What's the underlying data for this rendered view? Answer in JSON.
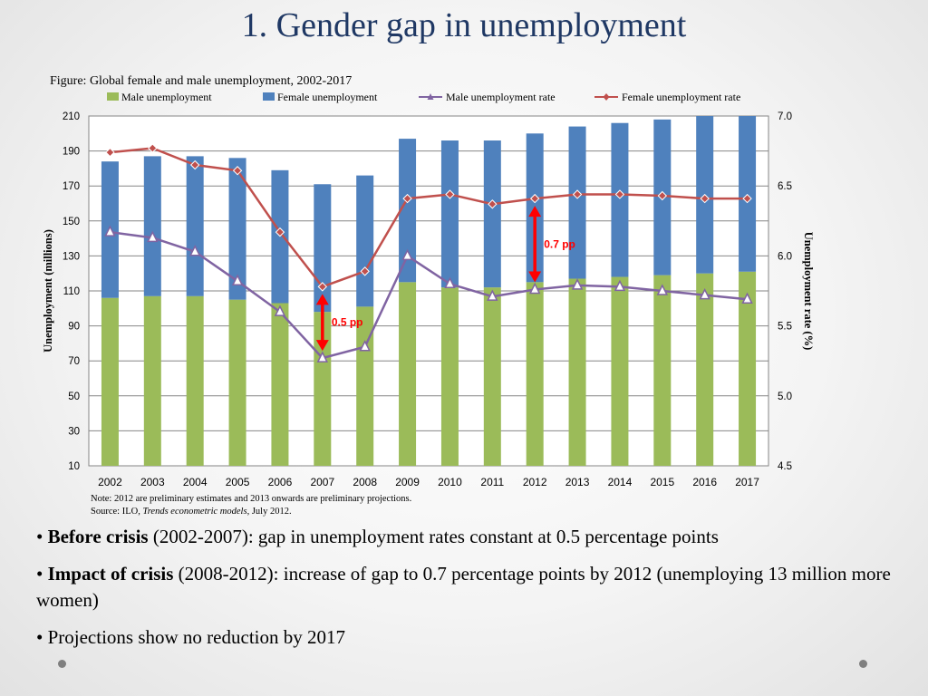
{
  "slide": {
    "title": "1. Gender gap in unemployment"
  },
  "figure": {
    "caption": "Figure: Global female and male unemployment, 2002-2017",
    "note": "Note: 2012 are preliminary estimates and 2013 onwards are preliminary projections.",
    "source_prefix": "Source: ILO, ",
    "source_title": "Trends econometric models",
    "source_suffix": ", July 2012."
  },
  "chart_data": {
    "type": "bar+line",
    "title": "Global female and male unemployment, 2002-2017",
    "categories": [
      "2002",
      "2003",
      "2004",
      "2005",
      "2006",
      "2007",
      "2008",
      "2009",
      "2010",
      "2011",
      "2012",
      "2013",
      "2014",
      "2015",
      "2016",
      "2017"
    ],
    "series": [
      {
        "name": "Male unemployment",
        "kind": "stacked-bar",
        "axis": "left",
        "color": "#9bbb59",
        "values": [
          106,
          107,
          107,
          105,
          103,
          98,
          101,
          115,
          112,
          112,
          115,
          117,
          118,
          119,
          120,
          121
        ]
      },
      {
        "name": "Female unemployment",
        "kind": "stacked-bar",
        "axis": "left",
        "color": "#4f81bd",
        "values": [
          78,
          80,
          80,
          81,
          76,
          73,
          75,
          82,
          84,
          84,
          85,
          87,
          88,
          89,
          90,
          90
        ]
      },
      {
        "name": "Male unemployment rate",
        "kind": "line",
        "axis": "right",
        "color": "#8064a2",
        "marker": "triangle",
        "values": [
          6.17,
          6.13,
          6.03,
          5.82,
          5.6,
          5.27,
          5.35,
          6.0,
          5.8,
          5.71,
          5.76,
          5.79,
          5.78,
          5.75,
          5.72,
          5.69
        ]
      },
      {
        "name": "Female unemployment rate",
        "kind": "line",
        "axis": "right",
        "color": "#c0504d",
        "marker": "diamond",
        "values": [
          6.74,
          6.77,
          6.65,
          6.61,
          6.17,
          5.78,
          5.89,
          6.41,
          6.44,
          6.37,
          6.41,
          6.44,
          6.44,
          6.43,
          6.41,
          6.41
        ]
      }
    ],
    "y_left": {
      "label": "Unemployment (millions)",
      "min": 10,
      "max": 210,
      "ticks": [
        "10",
        "30",
        "50",
        "70",
        "90",
        "110",
        "130",
        "150",
        "170",
        "190",
        "210"
      ]
    },
    "y_right": {
      "label": "Unemployment rate (%)",
      "min": 4.5,
      "max": 7.0,
      "ticks": [
        "4.5",
        "5.0",
        "5.5",
        "6.0",
        "6.5",
        "7.0"
      ]
    },
    "gridlines": true,
    "legend_position": "top",
    "annotations": [
      {
        "text": "0.5 pp",
        "year": "2007",
        "from": 5.27,
        "to": 5.78,
        "color": "#ff0000"
      },
      {
        "text": "0.7 pp",
        "year": "2012",
        "from": 5.76,
        "to": 6.41,
        "color": "#ff0000"
      }
    ]
  },
  "bullets": [
    {
      "bold": "Before crisis",
      "text": " (2002-2007): gap in unemployment rates constant at 0.5 percentage points"
    },
    {
      "bold": "Impact of crisis",
      "text": " (2008-2012): increase of gap to 0.7 percentage points by 2012 (unemploying 13 million more women)"
    },
    {
      "bold": "",
      "text": "Projections show no reduction by 2017"
    }
  ]
}
